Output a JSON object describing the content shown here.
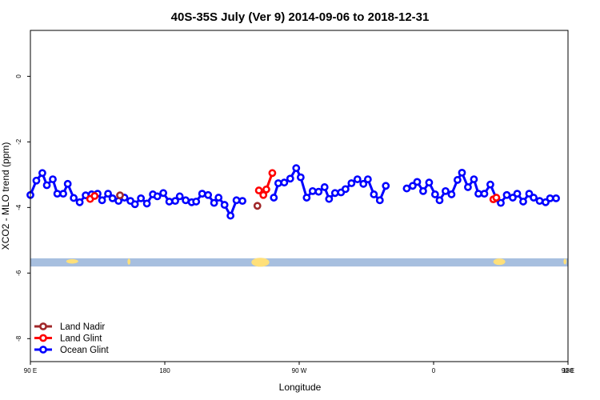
{
  "chart_data": {
    "type": "line",
    "title": "40S-35S July (Ver 9)   2014-09-06 to 2018-12-31",
    "xlabel": "Longitude",
    "ylabel": "XCO2 - MLO trend (ppm)",
    "xlim": [
      90,
      450
    ],
    "ylim": [
      -8.7,
      1.4
    ],
    "x_ticks": [
      {
        "value": 90,
        "label": "90 E"
      },
      {
        "value": 180,
        "label": "180"
      },
      {
        "value": 270,
        "label": "90 W"
      },
      {
        "value": 360,
        "label": "0"
      },
      {
        "value": 450,
        "label": "90 E"
      },
      {
        "value": 540,
        "label": "180"
      }
    ],
    "y_ticks": [
      {
        "value": 0,
        "label": "0"
      },
      {
        "value": -2,
        "label": "-2"
      },
      {
        "value": -4,
        "label": "-4"
      },
      {
        "value": -6,
        "label": "-6"
      },
      {
        "value": -8,
        "label": "-8"
      }
    ],
    "legend_position": "bottom-left",
    "grid": false,
    "map_strip": {
      "y_range": [
        -5.8,
        -5.55
      ],
      "ocean_color": "#a7bfdf",
      "land_color": "#ffe07a"
    },
    "series": [
      {
        "name": "Land Nadir",
        "color": "#a0282a",
        "points": [
          [
            242,
            -3.95
          ],
          [
            150,
            -3.63
          ]
        ]
      },
      {
        "name": "Land Glint",
        "color": "#ff0000",
        "points": [
          [
            130,
            -3.74
          ],
          [
            133,
            -3.65
          ],
          [
            243,
            -3.48
          ],
          [
            246,
            -3.62
          ],
          [
            248,
            -3.45
          ],
          [
            252,
            -2.95
          ],
          [
            400,
            -3.75
          ],
          [
            402,
            -3.7
          ]
        ]
      },
      {
        "name": "Ocean Glint",
        "color": "#0000ff",
        "points": [
          [
            90,
            -3.62
          ],
          [
            94,
            -3.18
          ],
          [
            98,
            -2.95
          ],
          [
            101,
            -3.32
          ],
          [
            105,
            -3.14
          ],
          [
            108,
            -3.58
          ],
          [
            112,
            -3.58
          ],
          [
            115,
            -3.28
          ],
          [
            119,
            -3.71
          ],
          [
            123,
            -3.84
          ],
          [
            127,
            -3.63
          ],
          [
            131,
            -3.6
          ],
          [
            135,
            -3.58
          ],
          [
            138,
            -3.78
          ],
          [
            142,
            -3.58
          ],
          [
            145,
            -3.72
          ],
          [
            149,
            -3.8
          ],
          [
            153,
            -3.7
          ],
          [
            157,
            -3.8
          ],
          [
            160,
            -3.9
          ],
          [
            164,
            -3.72
          ],
          [
            168,
            -3.88
          ],
          [
            172,
            -3.6
          ],
          [
            175,
            -3.66
          ],
          [
            179,
            -3.56
          ],
          [
            183,
            -3.82
          ],
          [
            187,
            -3.8
          ],
          [
            190,
            -3.66
          ],
          [
            194,
            -3.78
          ],
          [
            198,
            -3.84
          ],
          [
            201,
            -3.82
          ],
          [
            205,
            -3.58
          ],
          [
            209,
            -3.62
          ],
          [
            213,
            -3.86
          ],
          [
            216,
            -3.7
          ],
          [
            220,
            -3.92
          ],
          [
            224,
            -4.25
          ],
          [
            228,
            -3.78
          ],
          [
            232,
            -3.8
          ],
          [
            253,
            -3.7
          ],
          [
            256,
            -3.26
          ],
          [
            260,
            -3.24
          ],
          [
            264,
            -3.12
          ],
          [
            268,
            -2.8
          ],
          [
            271,
            -3.08
          ],
          [
            275,
            -3.7
          ],
          [
            279,
            -3.5
          ],
          [
            283,
            -3.52
          ],
          [
            287,
            -3.38
          ],
          [
            290,
            -3.74
          ],
          [
            294,
            -3.56
          ],
          [
            298,
            -3.54
          ],
          [
            301,
            -3.44
          ],
          [
            305,
            -3.26
          ],
          [
            309,
            -3.14
          ],
          [
            313,
            -3.28
          ],
          [
            316,
            -3.14
          ],
          [
            320,
            -3.6
          ],
          [
            324,
            -3.78
          ],
          [
            328,
            -3.34
          ],
          [
            342,
            -3.42
          ],
          [
            346,
            -3.34
          ],
          [
            349,
            -3.22
          ],
          [
            353,
            -3.5
          ],
          [
            357,
            -3.24
          ],
          [
            361,
            -3.6
          ],
          [
            364,
            -3.78
          ],
          [
            368,
            -3.5
          ],
          [
            372,
            -3.6
          ],
          [
            376,
            -3.16
          ],
          [
            379,
            -2.94
          ],
          [
            383,
            -3.38
          ],
          [
            387,
            -3.14
          ],
          [
            390,
            -3.58
          ],
          [
            394,
            -3.58
          ],
          [
            398,
            -3.3
          ],
          [
            402,
            -3.72
          ],
          [
            405,
            -3.86
          ],
          [
            409,
            -3.62
          ],
          [
            413,
            -3.7
          ],
          [
            416,
            -3.58
          ],
          [
            420,
            -3.82
          ],
          [
            424,
            -3.58
          ],
          [
            427,
            -3.7
          ],
          [
            431,
            -3.8
          ],
          [
            435,
            -3.84
          ],
          [
            438,
            -3.72
          ],
          [
            442,
            -3.72
          ]
        ]
      }
    ]
  }
}
